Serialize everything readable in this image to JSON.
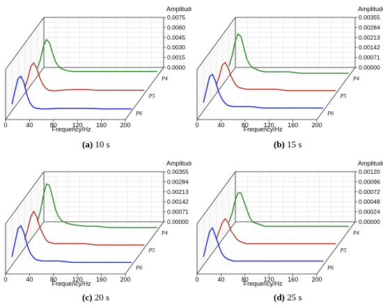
{
  "chart_data": [
    {
      "type": "line",
      "panel_label": "(a)",
      "caption_text": "10 s",
      "xlabel": "Frequency/Hz",
      "zlabel": "Amplitude",
      "x_ticks": [
        "0",
        "40",
        "80",
        "120",
        "160",
        "200"
      ],
      "z_ticks": [
        "0.0000",
        "0.0015",
        "0.0030",
        "0.0045",
        "0.0060",
        "0.0075"
      ],
      "z_max": 0.0075,
      "depth_labels": [
        "P4",
        "P5",
        "P6"
      ],
      "series": [
        {
          "name": "P4",
          "color": "#2e8b2e",
          "x": [
            0,
            5,
            10,
            15,
            20,
            25,
            30,
            35,
            40,
            50,
            60,
            80,
            100,
            120,
            150,
            200
          ],
          "y": [
            0.0012,
            0.0025,
            0.0045,
            0.0055,
            0.005,
            0.0035,
            0.0022,
            0.0015,
            0.0011,
            0.0008,
            0.0007,
            0.0007,
            0.0007,
            0.0007,
            0.0007,
            0.0007
          ]
        },
        {
          "name": "P5",
          "color": "#b03a2e",
          "x": [
            0,
            5,
            10,
            15,
            20,
            25,
            30,
            35,
            40,
            50,
            60,
            80,
            100,
            120,
            150,
            200
          ],
          "y": [
            0.0008,
            0.0022,
            0.004,
            0.0046,
            0.0038,
            0.0024,
            0.0014,
            0.0008,
            0.0005,
            0.0004,
            0.0005,
            0.0006,
            0.0006,
            0.0005,
            0.0005,
            0.0005
          ]
        },
        {
          "name": "P6",
          "color": "#1f2ecc",
          "x": [
            0,
            5,
            10,
            15,
            20,
            25,
            30,
            35,
            40,
            50,
            60,
            80,
            100,
            120,
            150,
            200
          ],
          "y": [
            0.001,
            0.003,
            0.0048,
            0.0052,
            0.0042,
            0.0024,
            0.0012,
            0.0006,
            0.0004,
            0.0003,
            0.0003,
            0.0004,
            0.0004,
            0.0004,
            0.0003,
            0.0003
          ]
        }
      ]
    },
    {
      "type": "line",
      "panel_label": "(b)",
      "caption_text": "15 s",
      "xlabel": "Frequency/Hz",
      "zlabel": "Amplitude",
      "x_ticks": [
        "0",
        "40",
        "80",
        "120",
        "160",
        "200"
      ],
      "z_ticks": [
        "0.00000",
        "0.00071",
        "0.00142",
        "0.00213",
        "0.00284",
        "0.00355"
      ],
      "z_max": 0.00355,
      "depth_labels": [
        "P4",
        "P5",
        "P6"
      ],
      "series": [
        {
          "name": "P4",
          "color": "#2e8b2e",
          "x": [
            0,
            5,
            10,
            15,
            20,
            25,
            30,
            35,
            40,
            50,
            60,
            80,
            100,
            120,
            150,
            200
          ],
          "y": [
            0.0007,
            0.0014,
            0.0024,
            0.003,
            0.0028,
            0.002,
            0.0012,
            0.0008,
            0.0006,
            0.0004,
            0.0003,
            0.0003,
            0.0003,
            0.0002,
            0.0002,
            0.0002
          ]
        },
        {
          "name": "P5",
          "color": "#b03a2e",
          "x": [
            0,
            5,
            10,
            15,
            20,
            25,
            30,
            35,
            40,
            50,
            60,
            80,
            100,
            120,
            150,
            200
          ],
          "y": [
            0.0006,
            0.0012,
            0.002,
            0.0022,
            0.0018,
            0.0012,
            0.0008,
            0.0005,
            0.0004,
            0.0003,
            0.0003,
            0.0003,
            0.0003,
            0.0002,
            0.0002,
            0.0002
          ]
        },
        {
          "name": "P6",
          "color": "#1f2ecc",
          "x": [
            0,
            5,
            10,
            15,
            20,
            25,
            30,
            35,
            40,
            50,
            60,
            80,
            100,
            120,
            150,
            200
          ],
          "y": [
            0.0006,
            0.0015,
            0.0024,
            0.0026,
            0.0021,
            0.0014,
            0.0009,
            0.0006,
            0.0004,
            0.0003,
            0.0003,
            0.0003,
            0.0002,
            0.0002,
            0.0002,
            0.0002
          ]
        }
      ]
    },
    {
      "type": "line",
      "panel_label": "(c)",
      "caption_text": "20 s",
      "xlabel": "Frequency/Hz",
      "zlabel": "Amplitude",
      "x_ticks": [
        "0",
        "40",
        "80",
        "120",
        "160",
        "200"
      ],
      "z_ticks": [
        "0.00000",
        "0.00071",
        "0.00142",
        "0.00213",
        "0.00284",
        "0.00355"
      ],
      "z_max": 0.00355,
      "depth_labels": [
        "P4",
        "P5",
        "P6"
      ],
      "series": [
        {
          "name": "P4",
          "color": "#2e8b2e",
          "x": [
            0,
            5,
            10,
            15,
            20,
            25,
            30,
            35,
            40,
            50,
            60,
            80,
            100,
            120,
            150,
            200
          ],
          "y": [
            0.0006,
            0.0014,
            0.0025,
            0.0033,
            0.0032,
            0.0024,
            0.0015,
            0.001,
            0.0007,
            0.0005,
            0.0004,
            0.0003,
            0.0003,
            0.0002,
            0.0002,
            0.0002
          ]
        },
        {
          "name": "P5",
          "color": "#b03a2e",
          "x": [
            0,
            5,
            10,
            15,
            20,
            25,
            30,
            35,
            40,
            50,
            60,
            80,
            100,
            120,
            150,
            200
          ],
          "y": [
            0.0006,
            0.0013,
            0.0022,
            0.0026,
            0.0022,
            0.0015,
            0.001,
            0.0006,
            0.0004,
            0.0003,
            0.0003,
            0.0003,
            0.0003,
            0.0002,
            0.0002,
            0.0002
          ]
        },
        {
          "name": "P6",
          "color": "#1f2ecc",
          "x": [
            0,
            5,
            10,
            15,
            20,
            25,
            30,
            35,
            40,
            50,
            60,
            80,
            100,
            120,
            150,
            200
          ],
          "y": [
            0.0006,
            0.0016,
            0.0026,
            0.0028,
            0.0023,
            0.0015,
            0.0009,
            0.0006,
            0.0004,
            0.0003,
            0.0003,
            0.0003,
            0.0002,
            0.0002,
            0.0002,
            0.0002
          ]
        }
      ]
    },
    {
      "type": "line",
      "panel_label": "(d)",
      "caption_text": "25 s",
      "xlabel": "Frequency/Hz",
      "zlabel": "Amplitude",
      "x_ticks": [
        "0",
        "40",
        "80",
        "120",
        "160",
        "200"
      ],
      "z_ticks": [
        "0.00000",
        "0.00024",
        "0.00048",
        "0.00072",
        "0.00096",
        "0.00120"
      ],
      "z_max": 0.0012,
      "depth_labels": [
        "P4",
        "P5",
        "P6"
      ],
      "series": [
        {
          "name": "P4",
          "color": "#2e8b2e",
          "x": [
            0,
            5,
            10,
            15,
            20,
            25,
            30,
            35,
            40,
            50,
            60,
            80,
            100,
            120,
            150,
            200
          ],
          "y": [
            0.0002,
            0.0004,
            0.0007,
            0.0009,
            0.0009,
            0.0007,
            0.0005,
            0.0003,
            0.0002,
            0.00015,
            0.0001,
            0.0001,
            0.0001,
            0.0001,
            0.0001,
            0.0001
          ]
        },
        {
          "name": "P5",
          "color": "#b03a2e",
          "x": [
            0,
            5,
            10,
            15,
            20,
            25,
            30,
            35,
            40,
            50,
            60,
            80,
            100,
            120,
            150,
            200
          ],
          "y": [
            0.0002,
            0.0004,
            0.0006,
            0.0007,
            0.0006,
            0.0004,
            0.0003,
            0.0002,
            0.00015,
            0.0001,
            0.0001,
            0.0001,
            0.0001,
            0.0001,
            0.0001,
            0.0001
          ]
        },
        {
          "name": "P6",
          "color": "#1f2ecc",
          "x": [
            0,
            5,
            10,
            15,
            20,
            25,
            30,
            35,
            40,
            50,
            60,
            80,
            100,
            120,
            150,
            200
          ],
          "y": [
            0.0002,
            0.0005,
            0.0008,
            0.0009,
            0.0007,
            0.0005,
            0.0003,
            0.0002,
            0.00015,
            0.0001,
            0.0001,
            0.0001,
            0.0001,
            0.0001,
            0.0001,
            0.0001
          ]
        }
      ]
    }
  ]
}
